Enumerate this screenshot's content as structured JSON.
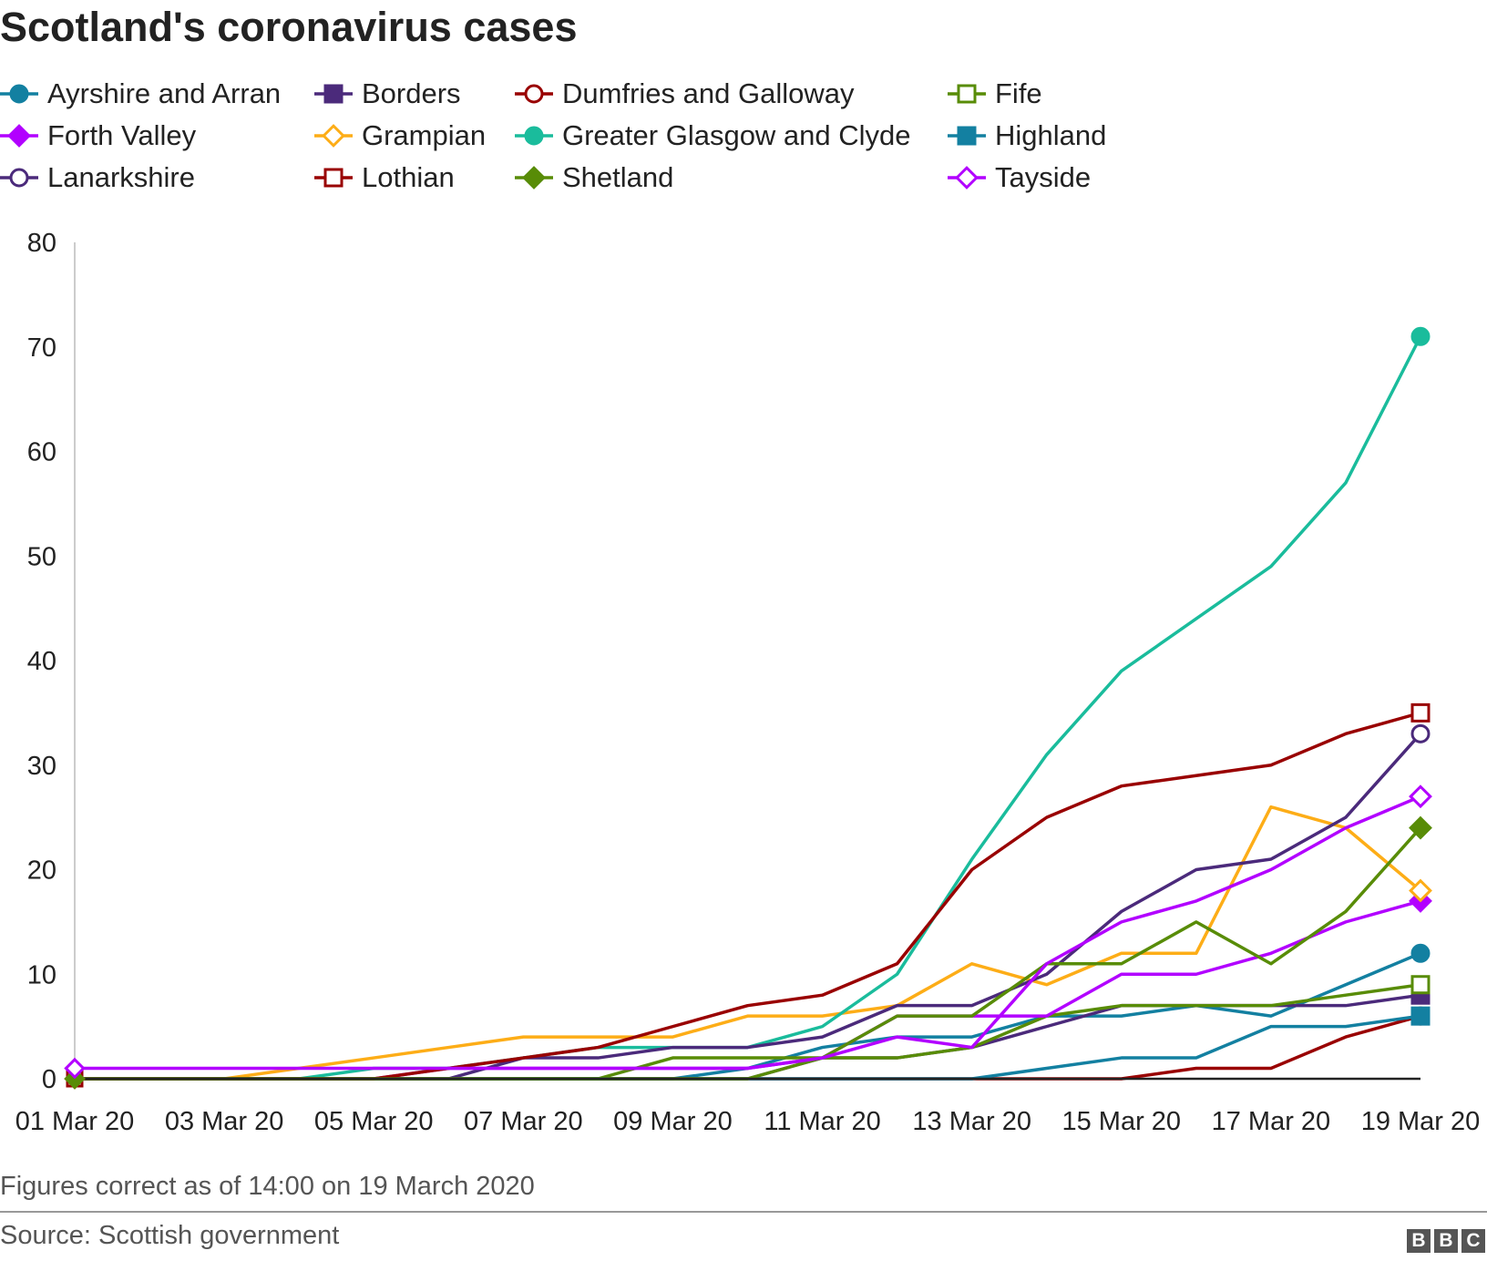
{
  "chart_data": {
    "type": "line",
    "title": "Scotland's coronavirus cases",
    "xlabel": "",
    "ylabel": "",
    "ylim": [
      0,
      80
    ],
    "yticks": [
      0,
      10,
      20,
      30,
      40,
      50,
      60,
      70,
      80
    ],
    "x": [
      "01 Mar 20",
      "02 Mar 20",
      "03 Mar 20",
      "04 Mar 20",
      "05 Mar 20",
      "06 Mar 20",
      "07 Mar 20",
      "08 Mar 20",
      "09 Mar 20",
      "10 Mar 20",
      "11 Mar 20",
      "12 Mar 20",
      "13 Mar 20",
      "14 Mar 20",
      "15 Mar 20",
      "16 Mar 20",
      "17 Mar 20",
      "18 Mar 20",
      "19 Mar 20"
    ],
    "xtick_labels": [
      "01 Mar 20",
      "03 Mar 20",
      "05 Mar 20",
      "07 Mar 20",
      "09 Mar 20",
      "11 Mar 20",
      "13 Mar 20",
      "15 Mar 20",
      "17 Mar 20",
      "19 Mar 20"
    ],
    "grid": false,
    "legend_placement": "top",
    "series": [
      {
        "name": "Ayrshire and Arran",
        "color": "#1380a1",
        "marker": "circle",
        "filled": true,
        "values": [
          0,
          0,
          0,
          0,
          0,
          0,
          0,
          0,
          0,
          1,
          3,
          4,
          4,
          6,
          6,
          7,
          6,
          9,
          12
        ]
      },
      {
        "name": "Borders",
        "color": "#4b2a7b",
        "marker": "square",
        "filled": true,
        "values": [
          0,
          0,
          0,
          0,
          0,
          0,
          0,
          0,
          0,
          0,
          2,
          2,
          3,
          5,
          7,
          7,
          7,
          7,
          8
        ]
      },
      {
        "name": "Dumfries and Galloway",
        "color": "#990000",
        "marker": "circle",
        "filled": false,
        "values": [
          0,
          0,
          0,
          0,
          0,
          0,
          0,
          0,
          0,
          0,
          0,
          0,
          0,
          0,
          0,
          1,
          1,
          4,
          6
        ]
      },
      {
        "name": "Fife",
        "color": "#588c07",
        "marker": "square",
        "filled": false,
        "values": [
          0,
          0,
          0,
          0,
          0,
          0,
          0,
          0,
          2,
          2,
          2,
          2,
          3,
          6,
          7,
          7,
          7,
          8,
          9
        ]
      },
      {
        "name": "Forth Valley",
        "color": "#b200ff",
        "marker": "diamond",
        "filled": true,
        "values": [
          0,
          0,
          0,
          0,
          0,
          1,
          1,
          1,
          1,
          1,
          2,
          6,
          6,
          6,
          10,
          10,
          12,
          15,
          17
        ]
      },
      {
        "name": "Grampian",
        "color": "#fdad17",
        "marker": "diamond",
        "filled": false,
        "values": [
          0,
          0,
          0,
          1,
          2,
          3,
          4,
          4,
          4,
          6,
          6,
          7,
          11,
          9,
          12,
          12,
          26,
          24,
          18
        ]
      },
      {
        "name": "Greater Glasgow and Clyde",
        "color": "#1abc9c",
        "marker": "circle",
        "filled": true,
        "values": [
          0,
          0,
          0,
          0,
          1,
          1,
          2,
          3,
          3,
          3,
          5,
          10,
          21,
          31,
          39,
          44,
          49,
          57,
          71
        ]
      },
      {
        "name": "Highland",
        "color": "#1380a1",
        "marker": "square",
        "filled": true,
        "values": [
          0,
          0,
          0,
          0,
          0,
          0,
          0,
          0,
          0,
          0,
          0,
          0,
          0,
          1,
          2,
          2,
          5,
          5,
          6
        ]
      },
      {
        "name": "Lanarkshire",
        "color": "#4b2a7b",
        "marker": "circle",
        "filled": false,
        "values": [
          0,
          0,
          0,
          0,
          0,
          0,
          2,
          2,
          3,
          3,
          4,
          7,
          7,
          10,
          16,
          20,
          21,
          25,
          33
        ]
      },
      {
        "name": "Lothian",
        "color": "#990000",
        "marker": "square",
        "filled": false,
        "values": [
          0,
          0,
          0,
          0,
          0,
          1,
          2,
          3,
          5,
          7,
          8,
          11,
          20,
          25,
          28,
          29,
          30,
          33,
          35
        ]
      },
      {
        "name": "Shetland",
        "color": "#588c07",
        "marker": "diamond",
        "filled": true,
        "values": [
          0,
          0,
          0,
          0,
          0,
          0,
          0,
          0,
          0,
          0,
          2,
          6,
          6,
          11,
          11,
          15,
          11,
          16,
          24
        ]
      },
      {
        "name": "Tayside",
        "color": "#b200ff",
        "marker": "diamond",
        "filled": false,
        "values": [
          1,
          1,
          1,
          1,
          1,
          1,
          1,
          1,
          1,
          1,
          2,
          4,
          3,
          11,
          15,
          17,
          20,
          24,
          27
        ]
      }
    ]
  },
  "footer": {
    "note": "Figures correct as of 14:00 on 19 March 2020",
    "source": "Source: Scottish government",
    "logo": "BBC"
  }
}
